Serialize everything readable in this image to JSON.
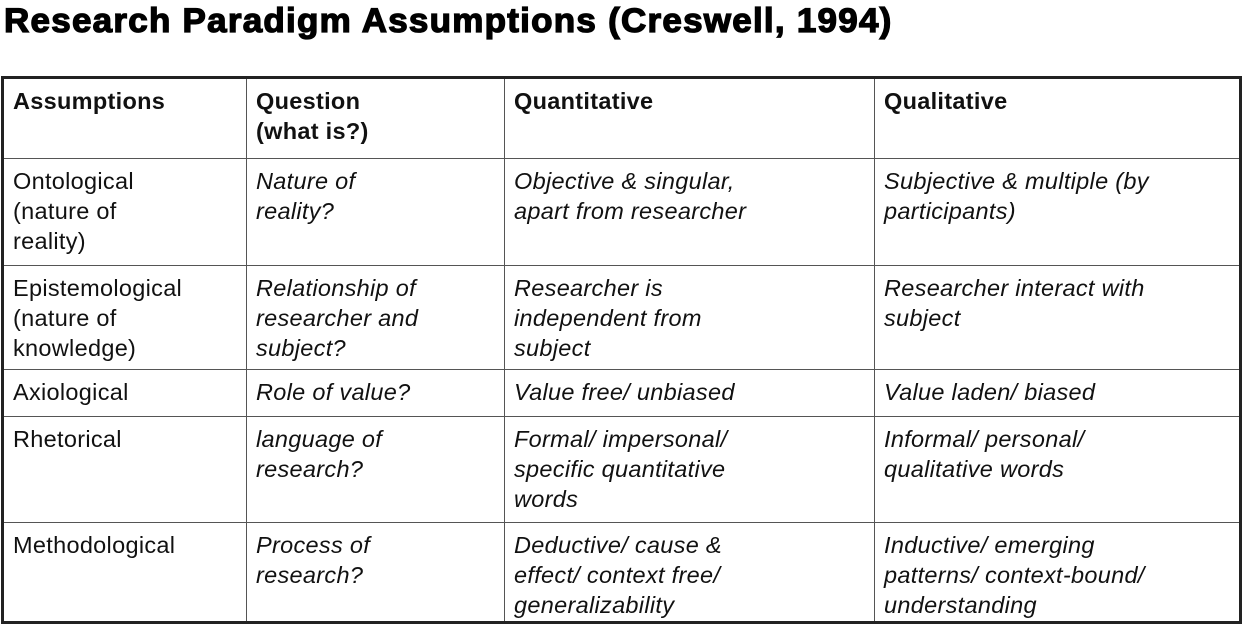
{
  "title": "Research Paradigm Assumptions (Creswell, 1994)",
  "table": {
    "headers": [
      "Assumptions",
      "Question\n(what is?)",
      "Quantitative",
      "Qualitative"
    ],
    "rows": [
      [
        "Ontological\n(nature of\nreality)",
        "Nature of\nreality?",
        "Objective & singular,\napart from researcher",
        "Subjective & multiple (by\nparticipants)"
      ],
      [
        "Epistemological\n(nature of\nknowledge)",
        "Relationship of\nresearcher and\nsubject?",
        "Researcher is\nindependent from\nsubject",
        "Researcher interact with\nsubject"
      ],
      [
        "Axiological",
        "Role of value?",
        "Value free/ unbiased",
        "Value laden/ biased"
      ],
      [
        "Rhetorical",
        "language of\nresearch?",
        "Formal/ impersonal/\nspecific quantitative\nwords",
        "Informal/ personal/\nqualitative words"
      ],
      [
        "Methodological",
        "Process of\nresearch?",
        "Deductive/ cause &\neffect/ context free/\ngeneralizability",
        "Inductive/ emerging\npatterns/ context-bound/\nunderstanding"
      ]
    ]
  }
}
